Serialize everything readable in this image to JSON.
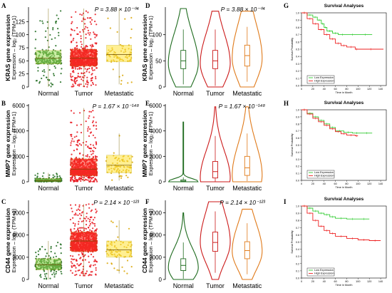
{
  "figure": {
    "panels": [
      "A",
      "B",
      "C",
      "D",
      "E",
      "F",
      "G",
      "H",
      "I"
    ]
  },
  "chart_data": [
    {
      "id": "A",
      "type": "scatter",
      "ylabel_gene": "KRAS gene expression",
      "ylabel_unit": "Expression – log₂ (TPM+1)",
      "pvalue": "P = 3.88 × 10⁻⁰⁴",
      "categories": [
        "Normal",
        "Tumor",
        "Metastatic"
      ],
      "yticks": [
        0,
        25,
        50,
        75,
        100,
        125
      ],
      "ylim": [
        0,
        150
      ],
      "colors": [
        "#1e6b1e",
        "#e8121a",
        "#d9a400"
      ],
      "box_colors": [
        "#9fe05a",
        "#ff3a2a",
        "#ffe23a"
      ],
      "series": [
        {
          "name": "Normal",
          "q1": 44,
          "median": 55,
          "q3": 70,
          "whisker_low": 0,
          "whisker_high": 150
        },
        {
          "name": "Tumor",
          "q1": 40,
          "median": 55,
          "q3": 72,
          "whisker_low": 0,
          "whisker_high": 150
        },
        {
          "name": "Metastatic",
          "q1": 48,
          "median": 62,
          "q3": 80,
          "whisker_low": 5,
          "whisker_high": 150
        }
      ]
    },
    {
      "id": "B",
      "type": "scatter",
      "ylabel_gene": "MMP7 gene expression",
      "ylabel_unit": "Expression – log₂ (TPM+1)",
      "pvalue": "P = 1.67 × 10⁻¹⁴⁸",
      "categories": [
        "Normal",
        "Tumor",
        "Metastatic"
      ],
      "yticks": [
        0,
        2000,
        4000,
        6000
      ],
      "ylim": [
        0,
        6000
      ],
      "colors": [
        "#1e6b1e",
        "#e8121a",
        "#d9a400"
      ],
      "box_colors": [
        "#9fe05a",
        "#ff3a2a",
        "#ffe23a"
      ],
      "series": [
        {
          "name": "Normal",
          "q1": 40,
          "median": 100,
          "q3": 250,
          "whisker_low": 0,
          "whisker_high": 700
        },
        {
          "name": "Tumor",
          "q1": 500,
          "median": 1000,
          "q3": 1800,
          "whisker_low": 0,
          "whisker_high": 5800
        },
        {
          "name": "Metastatic",
          "q1": 700,
          "median": 1300,
          "q3": 2100,
          "whisker_low": 100,
          "whisker_high": 3800
        }
      ]
    },
    {
      "id": "C",
      "type": "scatter",
      "ylabel_gene": "CD44 gene expression",
      "ylabel_unit": "Expression – log₂ (TPM+1)",
      "pvalue": "P = 2.14 × 10⁻¹²³",
      "categories": [
        "Normal",
        "Tumor",
        "Metastatic"
      ],
      "yticks": [
        0,
        3000,
        6000,
        9000
      ],
      "ylim": [
        0,
        10500
      ],
      "colors": [
        "#1e6b1e",
        "#e8121a",
        "#d9a400"
      ],
      "box_colors": [
        "#9fe05a",
        "#ff3a2a",
        "#ffe23a"
      ],
      "series": [
        {
          "name": "Normal",
          "q1": 1300,
          "median": 2000,
          "q3": 2800,
          "whisker_low": 0,
          "whisker_high": 5200
        },
        {
          "name": "Tumor",
          "q1": 3800,
          "median": 5200,
          "q3": 6400,
          "whisker_low": 500,
          "whisker_high": 10200
        },
        {
          "name": "Metastatic",
          "q1": 3000,
          "median": 4000,
          "q3": 5200,
          "whisker_low": 800,
          "whisker_high": 8000
        }
      ]
    },
    {
      "id": "D",
      "type": "violin",
      "ylabel_gene": "KRAS gene expression",
      "ylabel_unit": "Expression – log₂ (TPM+1)",
      "pvalue": "P = 3.88 × 10⁻⁰⁴",
      "categories": [
        "Normal",
        "Tumor",
        "Metastatic"
      ],
      "yticks": [
        0,
        50,
        100
      ],
      "ylim": [
        0,
        150
      ],
      "colors": [
        "#1e6b1e",
        "#cc1a1a",
        "#e07a1a"
      ],
      "series": [
        {
          "name": "Normal",
          "q1": 35,
          "median": 50,
          "q3": 70,
          "whisker_low": 5,
          "whisker_high": 110,
          "min": 0,
          "max": 150,
          "mode": 45
        },
        {
          "name": "Tumor",
          "q1": 35,
          "median": 50,
          "q3": 70,
          "whisker_low": 2,
          "whisker_high": 110,
          "min": 0,
          "max": 145,
          "mode": 45
        },
        {
          "name": "Metastatic",
          "q1": 40,
          "median": 60,
          "q3": 80,
          "whisker_low": 10,
          "whisker_high": 115,
          "min": 0,
          "max": 145,
          "mode": 55
        }
      ]
    },
    {
      "id": "E",
      "type": "violin",
      "ylabel_gene": "MMP7 gene expression",
      "ylabel_unit": "Expression – log₂ (TPM+1)",
      "pvalue": "P = 1.67 × 10⁻¹⁴⁸",
      "categories": [
        "Normal",
        "Tumor",
        "Metastatic"
      ],
      "yticks": [
        0,
        2000,
        4000,
        6000
      ],
      "ylim": [
        0,
        6000
      ],
      "colors": [
        "#1e6b1e",
        "#cc1a1a",
        "#e07a1a"
      ],
      "series": [
        {
          "name": "Normal",
          "q1": 20,
          "median": 60,
          "q3": 150,
          "whisker_low": 0,
          "whisker_high": 350,
          "min": 0,
          "max": 4700,
          "mode": 30
        },
        {
          "name": "Tumor",
          "q1": 300,
          "median": 800,
          "q3": 1600,
          "whisker_low": 0,
          "whisker_high": 3600,
          "min": 0,
          "max": 5900,
          "mode": 300
        },
        {
          "name": "Metastatic",
          "q1": 500,
          "median": 1100,
          "q3": 2000,
          "whisker_low": 50,
          "whisker_high": 3800,
          "min": 0,
          "max": 5900,
          "mode": 500
        }
      ]
    },
    {
      "id": "F",
      "type": "violin",
      "ylabel_gene": "CD44 gene expression",
      "ylabel_unit": "Expression – log₂ (TPM+1)",
      "pvalue": "P = 2.14 × 10⁻¹²³",
      "categories": [
        "Normal",
        "Tumor",
        "Metastatic"
      ],
      "yticks": [
        0,
        3000,
        6000,
        9000
      ],
      "ylim": [
        0,
        10500
      ],
      "colors": [
        "#1e6b1e",
        "#cc1a1a",
        "#e07a1a"
      ],
      "series": [
        {
          "name": "Normal",
          "q1": 1200,
          "median": 1900,
          "q3": 2800,
          "whisker_low": 100,
          "whisker_high": 5000,
          "min": 0,
          "max": 9000,
          "mode": 1600
        },
        {
          "name": "Tumor",
          "q1": 3800,
          "median": 5000,
          "q3": 6400,
          "whisker_low": 900,
          "whisker_high": 9200,
          "min": 0,
          "max": 10500,
          "mode": 5000
        },
        {
          "name": "Metastatic",
          "q1": 2800,
          "median": 3900,
          "q3": 5100,
          "whisker_low": 700,
          "whisker_high": 7600,
          "min": 0,
          "max": 9500,
          "mode": 3800
        }
      ]
    },
    {
      "id": "G",
      "type": "line",
      "title": "Survival Analyses",
      "xlabel": "Time in Month",
      "ylabel": "Survival Probability",
      "xlim": [
        0,
        150
      ],
      "ylim": [
        0,
        1.0
      ],
      "xticks": [
        0,
        20,
        40,
        60,
        80,
        100,
        120,
        140
      ],
      "yticks": [
        0.0,
        0.1,
        0.2,
        0.3,
        0.4,
        0.5,
        0.6,
        0.7,
        0.8,
        0.9,
        1.0
      ],
      "series": [
        {
          "name": "Low Expression",
          "color": "#33cc33",
          "x": [
            0,
            10,
            20,
            28,
            35,
            40,
            45,
            55,
            65,
            80,
            100,
            125
          ],
          "y": [
            1.0,
            0.97,
            0.94,
            0.9,
            0.85,
            0.8,
            0.75,
            0.72,
            0.7,
            0.7,
            0.7,
            0.7
          ]
        },
        {
          "name": "High Expression",
          "color": "#ee2222",
          "x": [
            0,
            10,
            20,
            30,
            40,
            50,
            60,
            70,
            80,
            95,
            100,
            145
          ],
          "y": [
            1.0,
            0.92,
            0.85,
            0.77,
            0.7,
            0.64,
            0.58,
            0.55,
            0.53,
            0.5,
            0.5,
            0.5
          ]
        }
      ]
    },
    {
      "id": "H",
      "type": "line",
      "title": "Survival Analyses",
      "xlabel": "Time in Month",
      "ylabel": "Survival Probability",
      "xlim": [
        0,
        150
      ],
      "ylim": [
        0,
        1.0
      ],
      "xticks": [
        0,
        20,
        40,
        60,
        80,
        100,
        120,
        140
      ],
      "yticks": [
        0.0,
        0.1,
        0.2,
        0.3,
        0.4,
        0.5,
        0.6,
        0.7,
        0.8,
        0.9,
        1.0
      ],
      "series": [
        {
          "name": "Low Expression",
          "color": "#33cc33",
          "x": [
            0,
            10,
            20,
            30,
            40,
            50,
            60,
            75,
            90,
            105,
            125
          ],
          "y": [
            1.0,
            0.95,
            0.9,
            0.85,
            0.8,
            0.75,
            0.7,
            0.68,
            0.67,
            0.67,
            0.67
          ]
        },
        {
          "name": "High Expression",
          "color": "#ee2222",
          "x": [
            0,
            10,
            20,
            30,
            40,
            50,
            60,
            70,
            80,
            95,
            100
          ],
          "y": [
            1.0,
            0.94,
            0.88,
            0.83,
            0.78,
            0.73,
            0.69,
            0.66,
            0.64,
            0.63,
            0.63
          ]
        }
      ]
    },
    {
      "id": "I",
      "type": "line",
      "title": "Survival Analyses",
      "xlabel": "Time in Month",
      "ylabel": "Survival Probability",
      "xlim": [
        0,
        150
      ],
      "ylim": [
        0,
        1.0
      ],
      "xticks": [
        0,
        20,
        40,
        60,
        80,
        100,
        120,
        140
      ],
      "yticks": [
        0.0,
        0.1,
        0.2,
        0.3,
        0.4,
        0.5,
        0.6,
        0.7,
        0.8,
        0.9,
        1.0
      ],
      "series": [
        {
          "name": "Low Expression",
          "color": "#33cc33",
          "x": [
            0,
            10,
            20,
            30,
            40,
            50,
            60,
            80,
            100,
            120
          ],
          "y": [
            1.0,
            0.97,
            0.93,
            0.9,
            0.88,
            0.85,
            0.83,
            0.82,
            0.82,
            0.82
          ]
        },
        {
          "name": "High Expression",
          "color": "#ee2222",
          "x": [
            0,
            10,
            20,
            30,
            40,
            50,
            60,
            80,
            100,
            120,
            140
          ],
          "y": [
            1.0,
            0.9,
            0.8,
            0.72,
            0.66,
            0.62,
            0.58,
            0.55,
            0.53,
            0.52,
            0.52
          ]
        }
      ]
    }
  ]
}
